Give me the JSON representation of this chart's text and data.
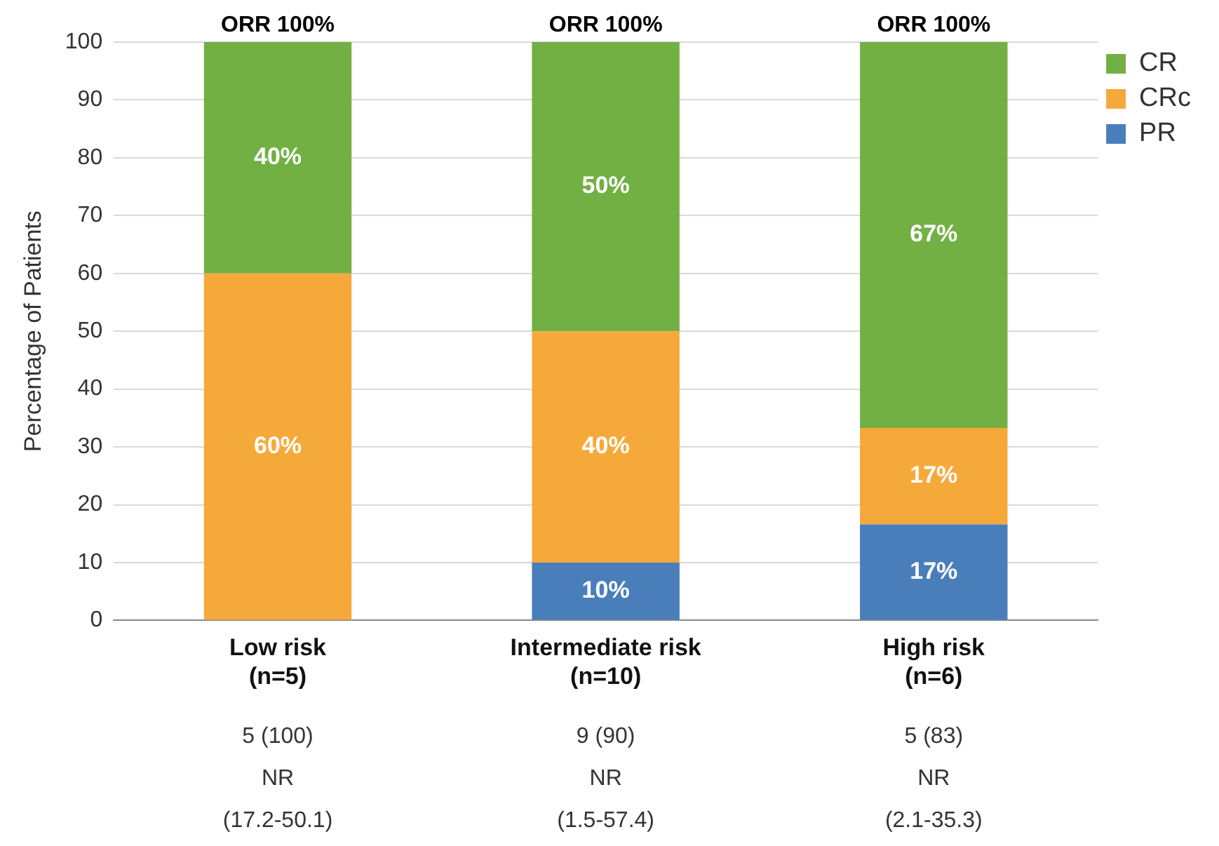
{
  "chart_data": {
    "type": "bar",
    "stacked": true,
    "ylabel": "Percentage of Patients",
    "categories": [
      "Low risk\n(n=5)",
      "Intermediate risk\n(n=10)",
      "High risk\n(n=6)"
    ],
    "series": [
      {
        "name": "PR",
        "color": "#4a7ebb",
        "values": [
          0,
          10,
          16.6
        ],
        "value_labels": [
          null,
          "10%",
          "17%"
        ]
      },
      {
        "name": "CRc",
        "color": "#f6a93b",
        "values": [
          60,
          40,
          16.7
        ],
        "value_labels": [
          "60%",
          "40%",
          "17%"
        ]
      },
      {
        "name": "CR",
        "color": "#72b043",
        "values": [
          40,
          50,
          66.7
        ],
        "value_labels": [
          "40%",
          "50%",
          "67%"
        ]
      }
    ],
    "ylim": [
      0,
      100
    ],
    "yticks": [
      0,
      10,
      20,
      30,
      40,
      50,
      60,
      70,
      80,
      90,
      100
    ],
    "grid": "y",
    "legend": "right",
    "annotations": [
      {
        "text": "ORR 100%",
        "x": "Low risk\n(n=5)",
        "y": 100
      },
      {
        "text": "ORR 100%",
        "x": "Intermediate risk\n(n=10)",
        "y": 100
      },
      {
        "text": "ORR 100%",
        "x": "High risk\n(n=6)",
        "y": 100
      },
      "5 (100)",
      "9 (90)",
      "5 (83)",
      "NR",
      "NR",
      "NR",
      "(17.2-50.1)",
      "(1.5-57.4)",
      "(2.1-35.3)"
    ]
  }
}
